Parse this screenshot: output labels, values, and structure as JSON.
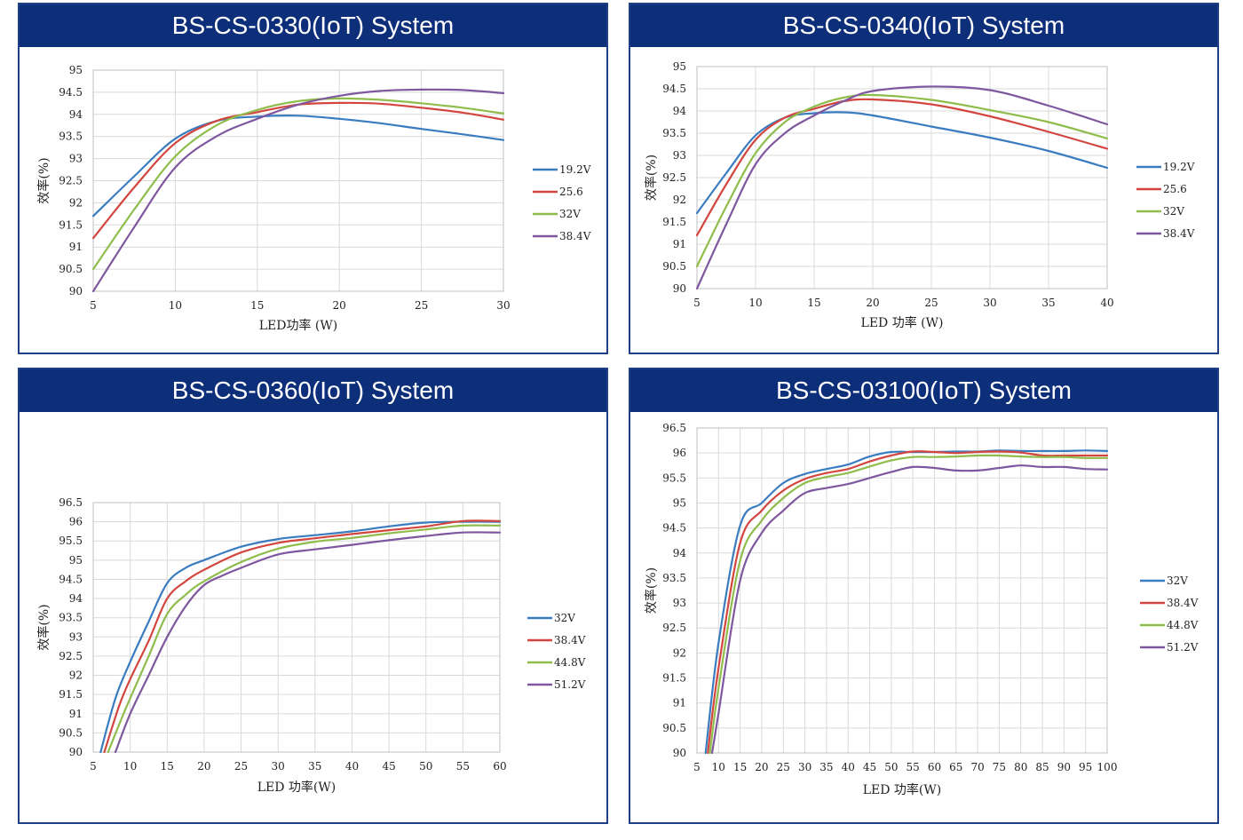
{
  "chart_data": [
    {
      "type": "line",
      "title": "BS-CS-0330(IoT) System",
      "xlabel": "LED功率 (W)",
      "ylabel": "效率(%)",
      "xlim": [
        5,
        30
      ],
      "ylim": [
        90,
        95
      ],
      "xticks": [
        5,
        10,
        15,
        20,
        25,
        30
      ],
      "yticks": [
        90,
        90.5,
        91,
        91.5,
        92,
        92.5,
        93,
        93.5,
        94,
        94.5,
        95
      ],
      "series": [
        {
          "name": "19.2V",
          "color": "#3a7cc0",
          "x": [
            5,
            7.5,
            10,
            12.5,
            15,
            17.5,
            20,
            22.5,
            25,
            27.5,
            30
          ],
          "y": [
            91.7,
            92.6,
            93.45,
            93.85,
            93.95,
            93.97,
            93.9,
            93.8,
            93.67,
            93.55,
            93.42
          ]
        },
        {
          "name": "25.6",
          "color": "#d2463f",
          "x": [
            5,
            7.5,
            10,
            12.5,
            15,
            17.5,
            20,
            22.5,
            25,
            27.5,
            30
          ],
          "y": [
            91.2,
            92.35,
            93.35,
            93.85,
            94.05,
            94.22,
            94.26,
            94.24,
            94.15,
            94.04,
            93.88
          ]
        },
        {
          "name": "32V",
          "color": "#8fbd4c",
          "x": [
            5,
            7.5,
            10,
            12.5,
            15,
            17.5,
            20,
            22.5,
            25,
            27.5,
            30
          ],
          "y": [
            90.5,
            91.85,
            93.05,
            93.75,
            94.1,
            94.3,
            94.36,
            94.33,
            94.25,
            94.15,
            94.02
          ]
        },
        {
          "name": "38.4V",
          "color": "#7e579e",
          "x": [
            5,
            7.5,
            10,
            12.5,
            15,
            17.5,
            20,
            22.5,
            25,
            27.5,
            30
          ],
          "y": [
            90.0,
            91.45,
            92.8,
            93.5,
            93.9,
            94.22,
            94.42,
            94.53,
            94.56,
            94.55,
            94.48
          ]
        }
      ]
    },
    {
      "type": "line",
      "title": "BS-CS-0340(IoT) System",
      "xlabel": "LED 功率 (W)",
      "ylabel": "效率(%)",
      "xlim": [
        5,
        40
      ],
      "ylim": [
        90,
        95
      ],
      "xticks": [
        5,
        10,
        15,
        20,
        25,
        30,
        35,
        40
      ],
      "yticks": [
        90,
        90.5,
        91,
        91.5,
        92,
        92.5,
        93,
        93.5,
        94,
        94.5,
        95
      ],
      "series": [
        {
          "name": "19.2V",
          "color": "#3a7cc0",
          "x": [
            5,
            7.5,
            10,
            12.5,
            15,
            17.5,
            20,
            25,
            30,
            35,
            40
          ],
          "y": [
            91.7,
            92.6,
            93.45,
            93.85,
            93.95,
            93.97,
            93.9,
            93.65,
            93.4,
            93.1,
            92.72
          ]
        },
        {
          "name": "25.6",
          "color": "#d2463f",
          "x": [
            5,
            7.5,
            10,
            12.5,
            15,
            17.5,
            20,
            25,
            30,
            35,
            40
          ],
          "y": [
            91.2,
            92.35,
            93.35,
            93.85,
            94.05,
            94.22,
            94.26,
            94.15,
            93.88,
            93.53,
            93.15
          ]
        },
        {
          "name": "32V",
          "color": "#8fbd4c",
          "x": [
            5,
            7.5,
            10,
            12.5,
            15,
            17.5,
            20,
            25,
            30,
            35,
            40
          ],
          "y": [
            90.5,
            91.85,
            93.05,
            93.75,
            94.1,
            94.3,
            94.36,
            94.25,
            94.02,
            93.75,
            93.38
          ]
        },
        {
          "name": "38.4V",
          "color": "#7e579e",
          "x": [
            5,
            7.5,
            10,
            12.5,
            15,
            17.5,
            20,
            25,
            30,
            35,
            40
          ],
          "y": [
            90.0,
            91.45,
            92.8,
            93.5,
            93.9,
            94.22,
            94.45,
            94.55,
            94.47,
            94.12,
            93.7
          ]
        }
      ]
    },
    {
      "type": "line",
      "title": "BS-CS-0360(IoT) System",
      "xlabel": "LED 功率(W)",
      "ylabel": "效率(%)",
      "xlim": [
        5,
        60
      ],
      "ylim": [
        90,
        96.5
      ],
      "xticks": [
        5,
        10,
        15,
        20,
        25,
        30,
        35,
        40,
        45,
        50,
        55,
        60
      ],
      "yticks": [
        90,
        90.5,
        91,
        91.5,
        92,
        92.5,
        93,
        93.5,
        94,
        94.5,
        95,
        95.5,
        96,
        96.5
      ],
      "series": [
        {
          "name": "32V",
          "color": "#3a7cc0",
          "x": [
            6,
            8,
            10,
            12.5,
            15,
            17.5,
            20,
            25,
            30,
            35,
            40,
            45,
            50,
            55,
            60
          ],
          "y": [
            90.0,
            91.4,
            92.35,
            93.4,
            94.4,
            94.8,
            95.0,
            95.35,
            95.55,
            95.65,
            95.75,
            95.88,
            95.98,
            96.0,
            96.0
          ]
        },
        {
          "name": "38.4V",
          "color": "#d2463f",
          "x": [
            6.5,
            8.5,
            10,
            12.5,
            15,
            17.5,
            20,
            25,
            30,
            35,
            40,
            45,
            50,
            55,
            60
          ],
          "y": [
            90.0,
            91.2,
            91.9,
            92.9,
            94.0,
            94.45,
            94.75,
            95.2,
            95.45,
            95.57,
            95.68,
            95.78,
            95.88,
            96.02,
            96.02
          ]
        },
        {
          "name": "44.8V",
          "color": "#8fbd4c",
          "x": [
            7,
            9,
            10,
            12.5,
            15,
            17.5,
            20,
            25,
            30,
            35,
            40,
            45,
            50,
            55,
            60
          ],
          "y": [
            90.0,
            90.95,
            91.4,
            92.5,
            93.6,
            94.1,
            94.45,
            94.95,
            95.3,
            95.48,
            95.58,
            95.7,
            95.8,
            95.9,
            95.9
          ]
        },
        {
          "name": "51.2V",
          "color": "#7e579e",
          "x": [
            8,
            10,
            12.5,
            15,
            17.5,
            20,
            22.5,
            25,
            30,
            35,
            40,
            45,
            50,
            55,
            60
          ],
          "y": [
            90.0,
            91.0,
            92.0,
            93.0,
            93.8,
            94.35,
            94.6,
            94.8,
            95.15,
            95.28,
            95.4,
            95.52,
            95.63,
            95.72,
            95.72
          ]
        }
      ]
    },
    {
      "type": "line",
      "title": "BS-CS-03100(IoT) System",
      "xlabel": "LED 功率(W)",
      "ylabel": "效率(%)",
      "xlim": [
        5,
        100
      ],
      "ylim": [
        90,
        96.5
      ],
      "xticks": [
        5,
        10,
        15,
        20,
        25,
        30,
        35,
        40,
        45,
        50,
        55,
        60,
        65,
        70,
        75,
        80,
        85,
        90,
        95,
        100
      ],
      "yticks": [
        90,
        90.5,
        91,
        91.5,
        92,
        92.5,
        93,
        93.5,
        94,
        94.5,
        95,
        95.5,
        96,
        96.5
      ],
      "series": [
        {
          "name": "32V",
          "color": "#3a7cc0",
          "x": [
            7,
            10,
            15,
            20,
            25,
            30,
            35,
            40,
            45,
            50,
            55,
            60,
            65,
            70,
            75,
            80,
            85,
            90,
            95,
            100
          ],
          "y": [
            90.0,
            92.2,
            94.55,
            95.0,
            95.4,
            95.58,
            95.68,
            95.77,
            95.93,
            96.02,
            96.02,
            96.02,
            96.03,
            96.03,
            96.05,
            96.04,
            96.04,
            96.04,
            96.05,
            96.04
          ]
        },
        {
          "name": "38.4V",
          "color": "#d2463f",
          "x": [
            7.5,
            10,
            15,
            20,
            25,
            30,
            35,
            40,
            45,
            50,
            55,
            60,
            65,
            70,
            75,
            80,
            85,
            90,
            95,
            100
          ],
          "y": [
            90.0,
            91.7,
            94.2,
            94.85,
            95.25,
            95.48,
            95.6,
            95.68,
            95.83,
            95.95,
            96.03,
            96.02,
            96.0,
            96.02,
            96.03,
            96.01,
            95.95,
            95.95,
            95.95,
            95.95
          ]
        },
        {
          "name": "44.8V",
          "color": "#8fbd4c",
          "x": [
            8,
            10,
            15,
            20,
            25,
            30,
            35,
            40,
            45,
            50,
            55,
            60,
            65,
            70,
            75,
            80,
            85,
            90,
            95,
            100
          ],
          "y": [
            90.0,
            91.3,
            93.85,
            94.65,
            95.1,
            95.4,
            95.52,
            95.6,
            95.73,
            95.85,
            95.92,
            95.92,
            95.93,
            95.95,
            95.95,
            95.93,
            95.92,
            95.92,
            95.9,
            95.9
          ]
        },
        {
          "name": "51.2V",
          "color": "#7e579e",
          "x": [
            8.5,
            10,
            15,
            20,
            25,
            30,
            35,
            40,
            45,
            50,
            55,
            60,
            65,
            70,
            75,
            80,
            85,
            90,
            95,
            100
          ],
          "y": [
            90.0,
            90.8,
            93.45,
            94.4,
            94.85,
            95.2,
            95.3,
            95.38,
            95.5,
            95.62,
            95.72,
            95.7,
            95.65,
            95.65,
            95.7,
            95.75,
            95.72,
            95.72,
            95.68,
            95.67
          ]
        }
      ]
    }
  ]
}
